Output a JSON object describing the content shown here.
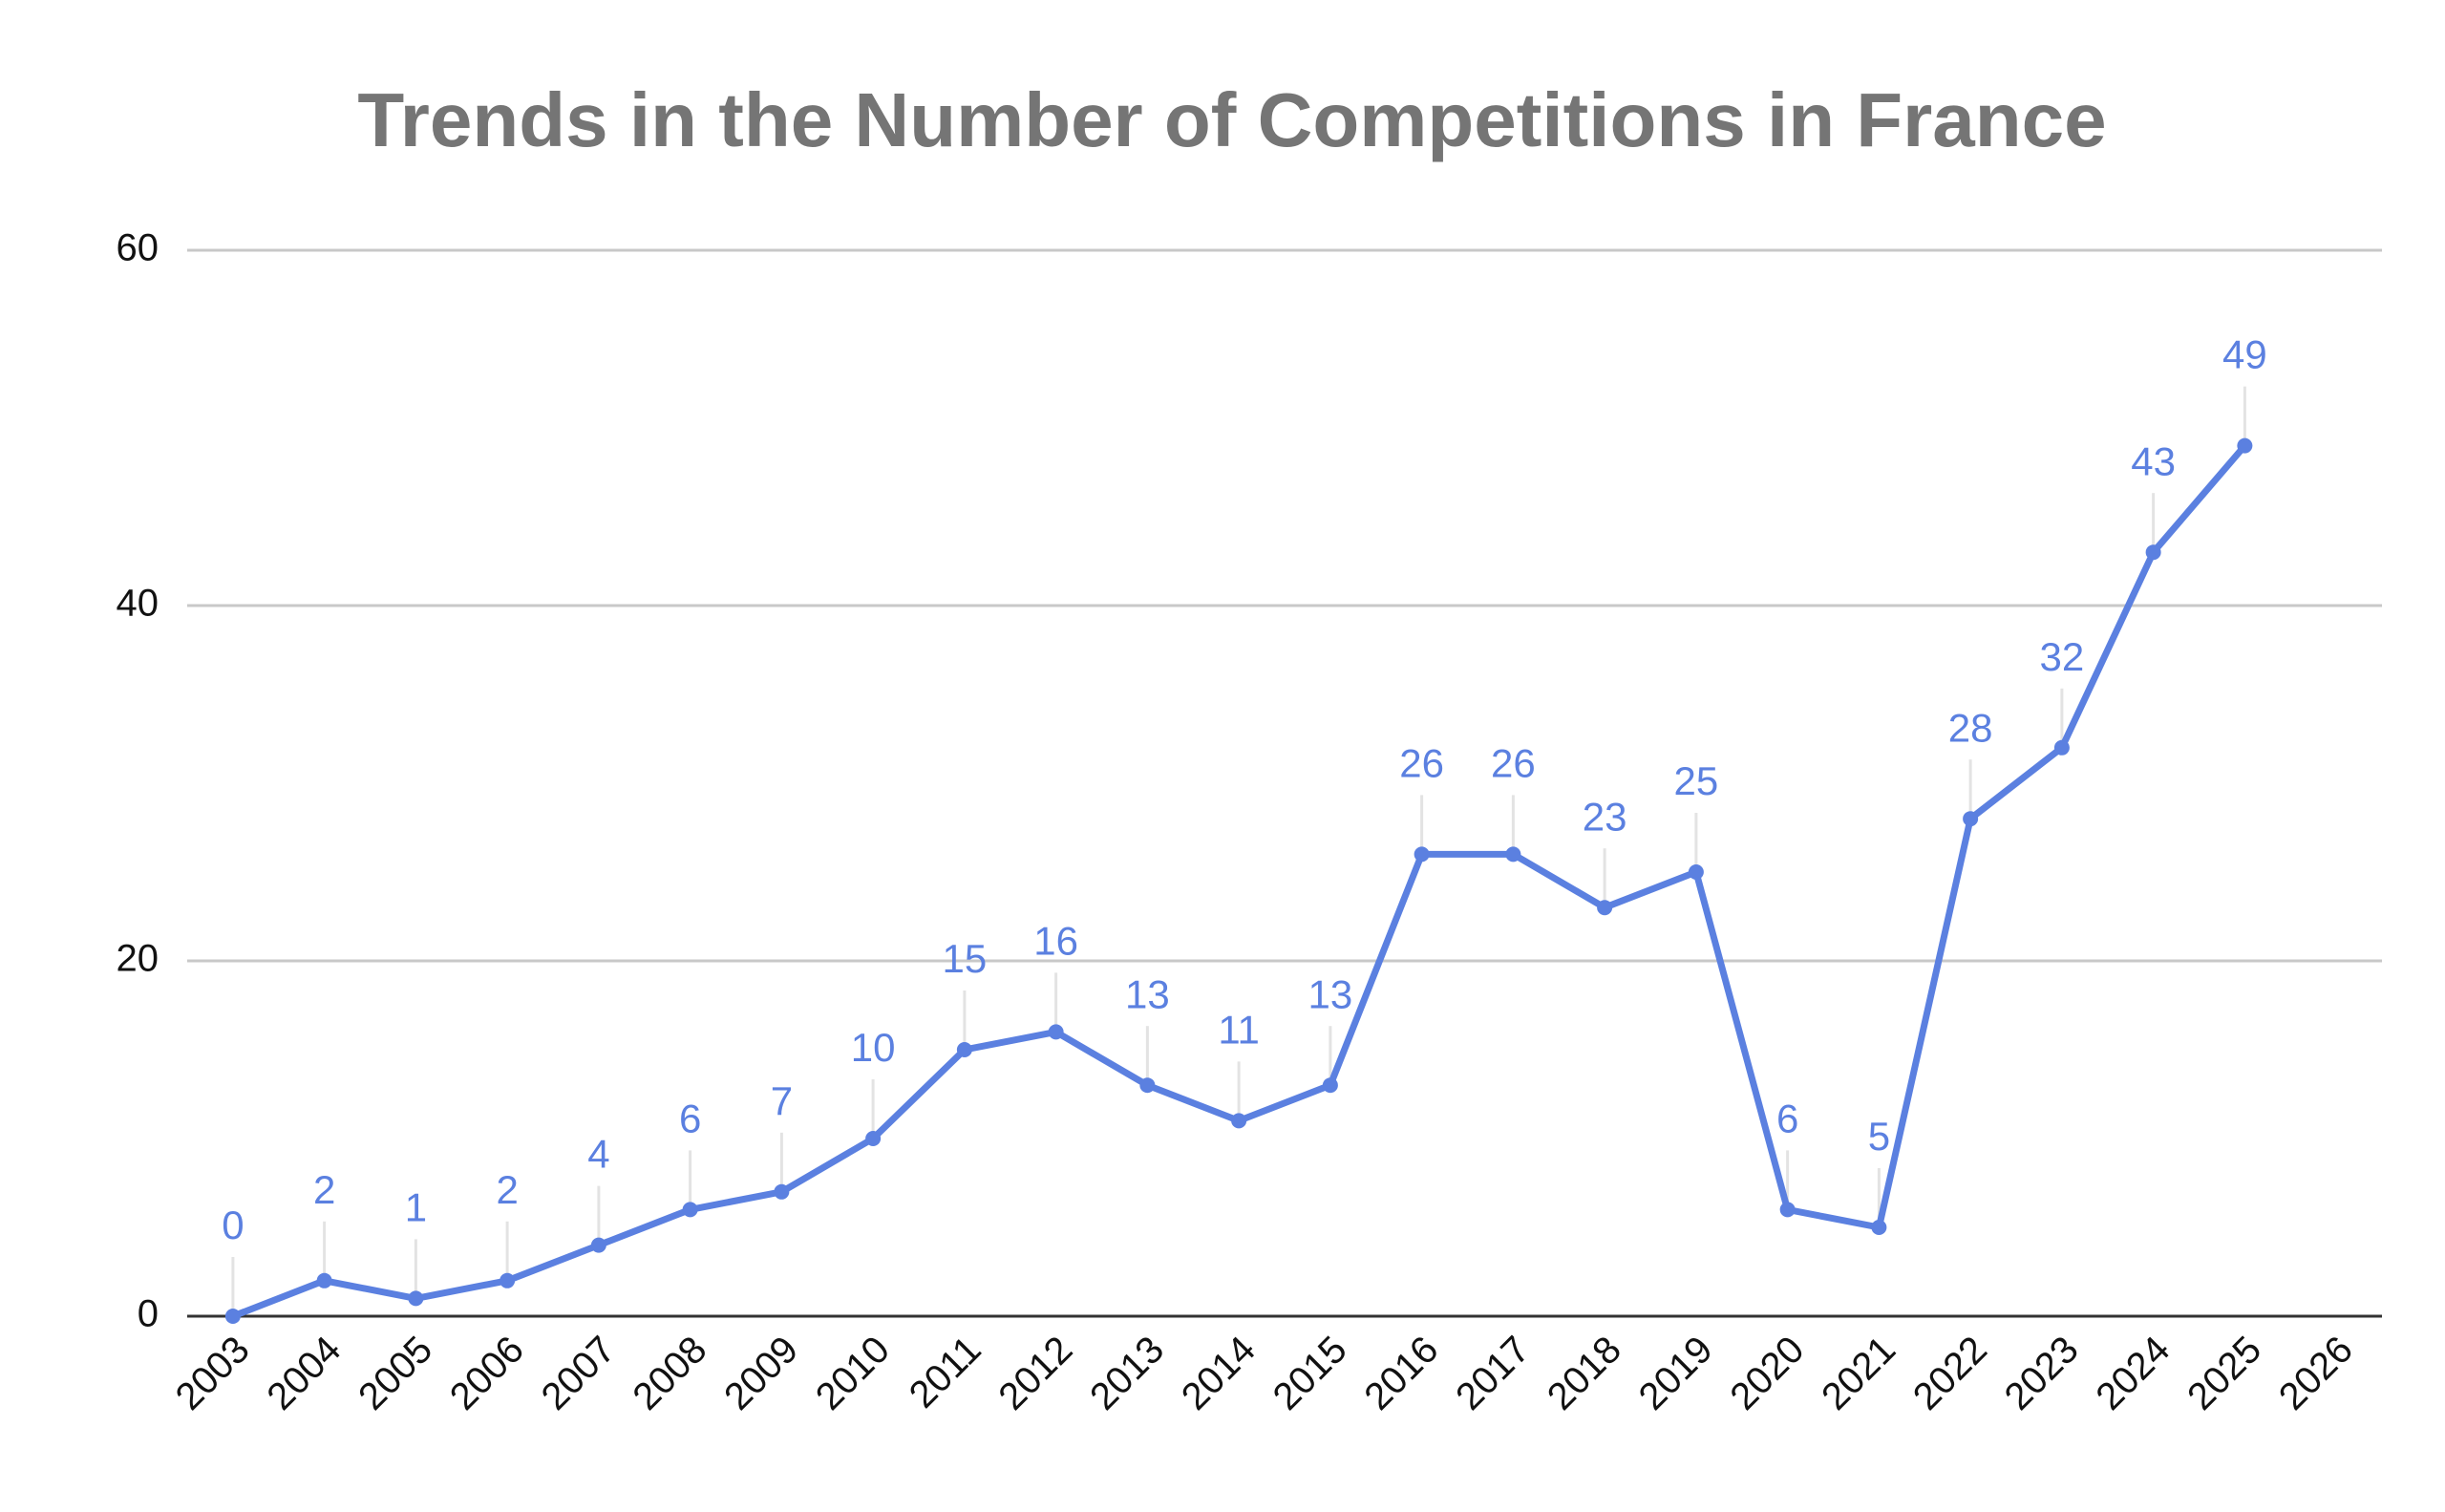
{
  "chart_data": {
    "type": "line",
    "title": "Trends in the Number of Competitions in France",
    "categories": [
      "2003",
      "2004",
      "2005",
      "2006",
      "2007",
      "2008",
      "2009",
      "2010",
      "2011",
      "2012",
      "2013",
      "2014",
      "2015",
      "2016",
      "2017",
      "2018",
      "2019",
      "2020",
      "2021",
      "2022",
      "2023",
      "2024",
      "2025",
      "2026"
    ],
    "values": [
      0,
      2,
      1,
      2,
      4,
      6,
      7,
      10,
      15,
      16,
      13,
      11,
      13,
      26,
      26,
      23,
      25,
      6,
      5,
      28,
      32,
      43,
      49,
      null
    ],
    "color": "#5b80e0",
    "ylim": [
      0,
      60
    ],
    "yticks": [
      0,
      20,
      40,
      60
    ],
    "grid": true
  }
}
